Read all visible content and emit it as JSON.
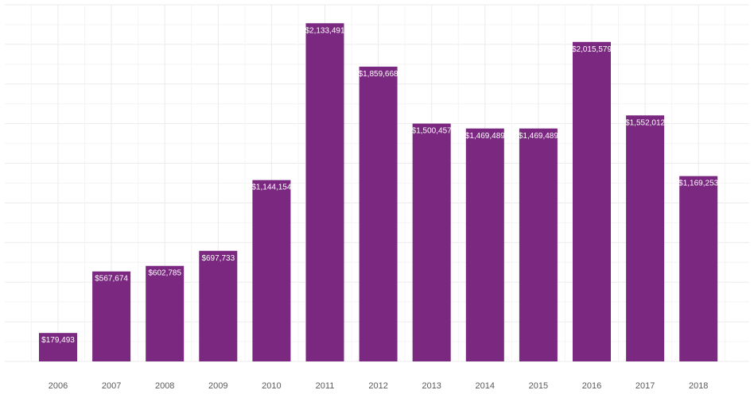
{
  "chart_data": {
    "type": "bar",
    "title": "",
    "xlabel": "",
    "ylabel": "",
    "categories": [
      "2006",
      "2007",
      "2008",
      "2009",
      "2010",
      "2011",
      "2012",
      "2013",
      "2014",
      "2015",
      "2016",
      "2017",
      "2018"
    ],
    "values": [
      179493,
      567674,
      602785,
      697733,
      1144154,
      2133491,
      1859668,
      1500457,
      1469489,
      1469489,
      2015579,
      1552012,
      1169253
    ],
    "value_labels": [
      "$179,493",
      "$567,674",
      "$602,785",
      "$697,733",
      "$1,144,154",
      "$2,133,491",
      "$1,859,668",
      "$1,500,457",
      "$1,469,489",
      "$1,469,489",
      "$2,015,579",
      "$1,552,012",
      "$1,169,253"
    ],
    "ylim": [
      0,
      2250000
    ],
    "grid": true,
    "y_tick_labels_shown": false,
    "legend": "none",
    "bar_color": "#7b2880"
  }
}
